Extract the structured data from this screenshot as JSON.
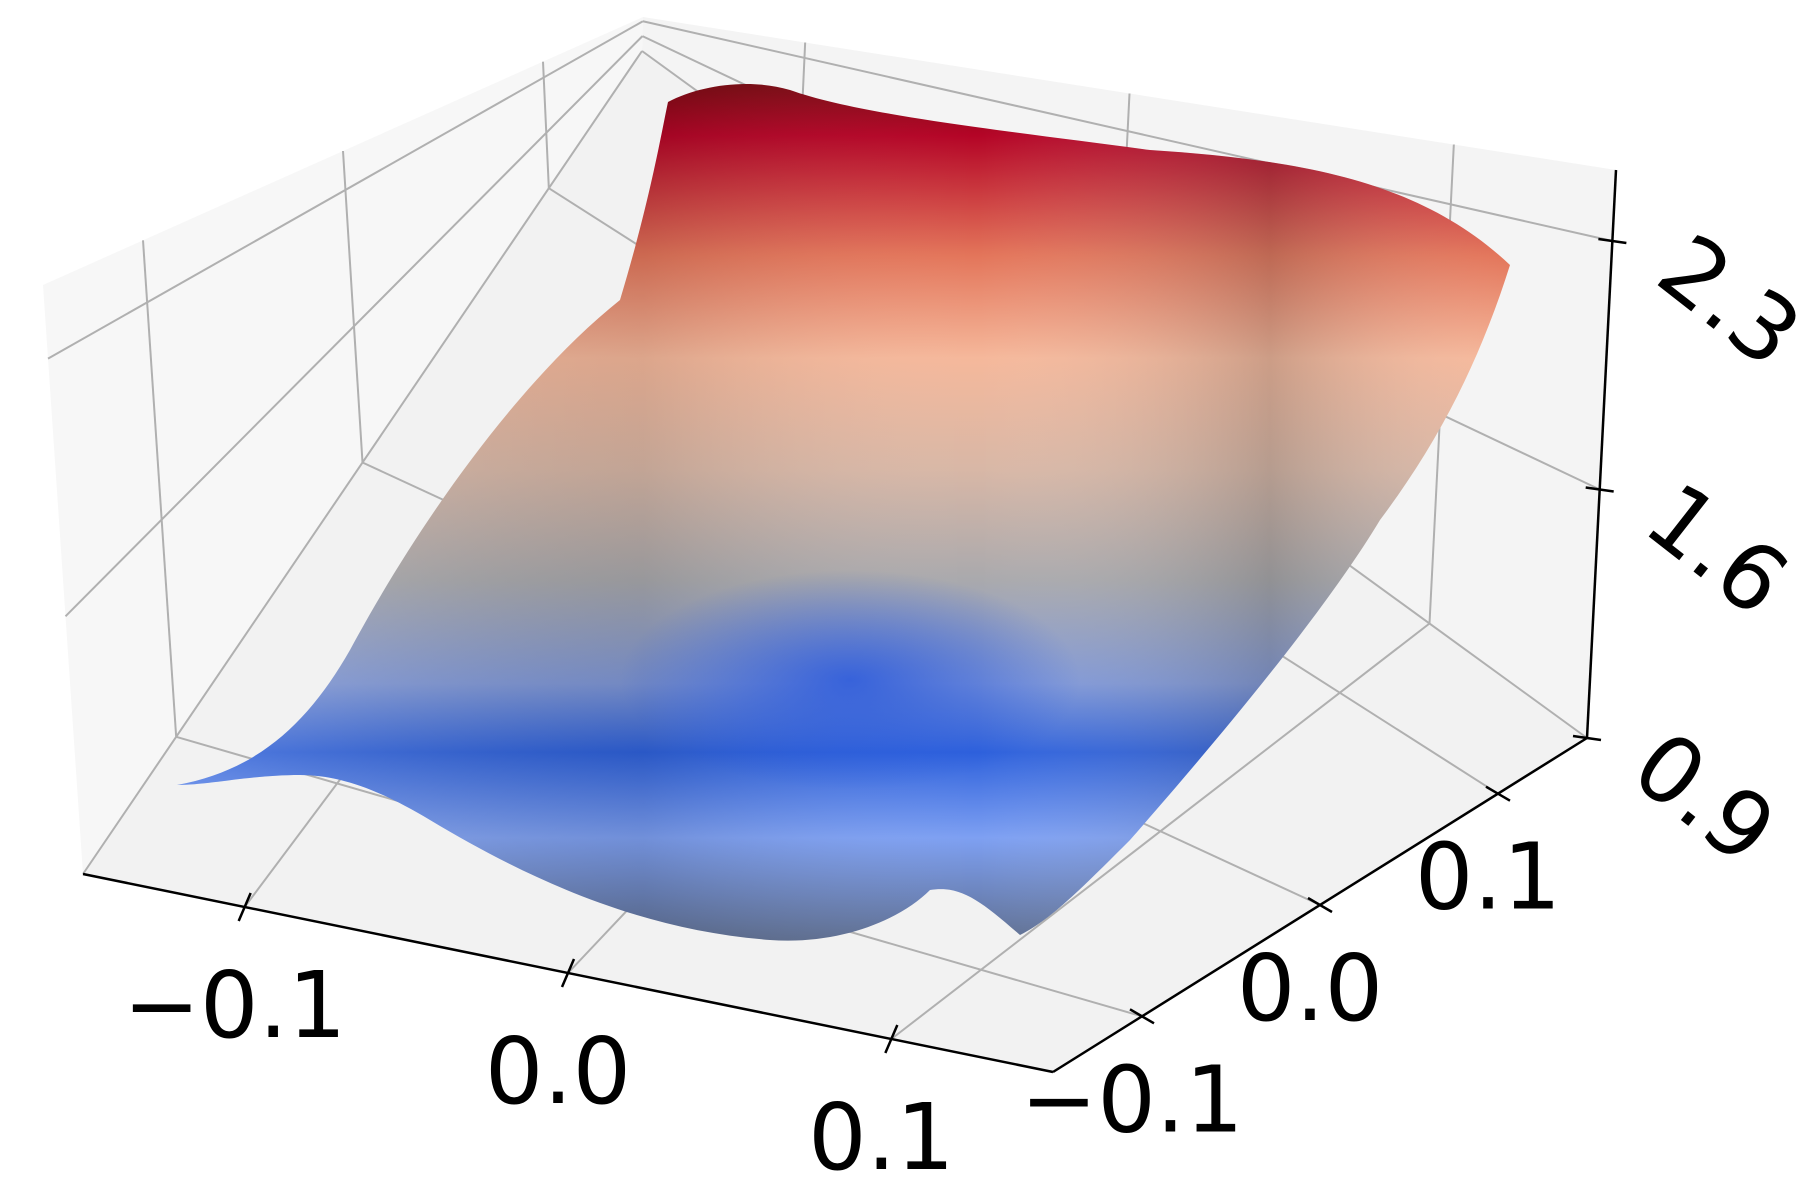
{
  "chart_data": {
    "type": "surface",
    "title": "",
    "xlabel": "",
    "ylabel": "",
    "zlabel": "",
    "x_ticks": [
      "−0.1",
      "0.0",
      "0.1"
    ],
    "y_ticks": [
      "−0.1",
      "0.0",
      "0.1"
    ],
    "z_ticks": [
      "0.9",
      "1.6",
      "2.3"
    ],
    "xlim": [
      -0.15,
      0.15
    ],
    "ylim": [
      -0.15,
      0.15
    ],
    "zlim": [
      0.9,
      2.5
    ],
    "colormap": "coolwarm",
    "grid": true,
    "colors": {
      "low": "#3b66d8",
      "mid": "#b9b9b9",
      "high": "#b40426",
      "pane": "#f2f2f2",
      "grid": "#b0b0b0"
    }
  }
}
